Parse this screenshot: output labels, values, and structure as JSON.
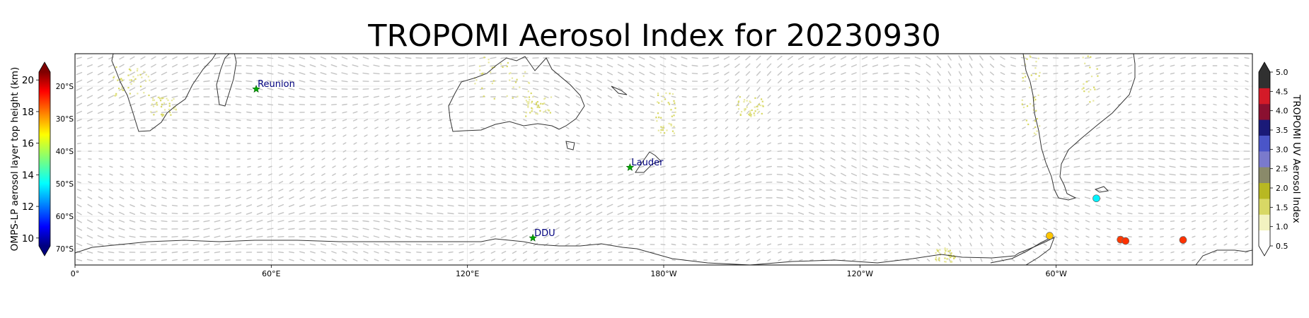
{
  "title": "TROPOMI Aerosol Index for 20230930",
  "map": {
    "projection": "PlateCarree",
    "lon_range": [
      0,
      360
    ],
    "lat_range": [
      -75,
      -10
    ],
    "lon_ticks": [
      {
        "lon": 0,
        "label": "0°"
      },
      {
        "lon": 60,
        "label": "60°E"
      },
      {
        "lon": 120,
        "label": "120°E"
      },
      {
        "lon": 180,
        "label": "180°W"
      },
      {
        "lon": 240,
        "label": "120°W"
      },
      {
        "lon": 300,
        "label": "60°W"
      }
    ],
    "lat_ticks": [
      {
        "lat": -20,
        "label": "20°S"
      },
      {
        "lat": -30,
        "label": "30°S"
      },
      {
        "lat": -40,
        "label": "40°S"
      },
      {
        "lat": -50,
        "label": "50°S"
      },
      {
        "lat": -60,
        "label": "60°S"
      },
      {
        "lat": -70,
        "label": "70°S"
      }
    ],
    "sites": [
      {
        "name": "Reunion",
        "lon": 55.4,
        "lat": -20.9
      },
      {
        "name": "Lauder",
        "lon": 169.7,
        "lat": -45.0
      },
      {
        "name": "DDU",
        "lon": 140.0,
        "lat": -66.7
      }
    ],
    "omps_points": [
      {
        "lon": 312.3,
        "lat": -54.5,
        "height_km": 13.5
      },
      {
        "lon": 298.0,
        "lat": -66.0,
        "height_km": 17.0
      },
      {
        "lon": 319.7,
        "lat": -67.2,
        "height_km": 18.5
      },
      {
        "lon": 321.2,
        "lat": -67.6,
        "height_km": 18.6
      },
      {
        "lon": 338.8,
        "lat": -67.3,
        "height_km": 18.6
      }
    ],
    "colors": {
      "coast": "#333333",
      "wind_arrows": "#c4c4c4",
      "site_star": "#00aa00",
      "site_label": "#00007f"
    }
  },
  "colorbar_left": {
    "label": "OMPS-LP aerosol layer top height (km)",
    "min": 9.5,
    "max": 20.5,
    "ticks": [
      {
        "v": 10,
        "label": "10"
      },
      {
        "v": 12,
        "label": "12"
      },
      {
        "v": 14,
        "label": "14"
      },
      {
        "v": 16,
        "label": "16"
      },
      {
        "v": 18,
        "label": "18"
      },
      {
        "v": 20,
        "label": "20"
      }
    ],
    "colormap": "jet",
    "extend": "both"
  },
  "colorbar_right": {
    "label": "TROPOMI UV Aerosol Index",
    "min": 0.5,
    "max": 5.0,
    "ticks": [
      {
        "v": 0.5,
        "label": "0.5"
      },
      {
        "v": 1.0,
        "label": "1.0"
      },
      {
        "v": 1.5,
        "label": "1.5"
      },
      {
        "v": 2.0,
        "label": "2.0"
      },
      {
        "v": 2.5,
        "label": "2.5"
      },
      {
        "v": 3.0,
        "label": "3.0"
      },
      {
        "v": 3.5,
        "label": "3.5"
      },
      {
        "v": 4.0,
        "label": "4.0"
      },
      {
        "v": 4.5,
        "label": "4.5"
      },
      {
        "v": 5.0,
        "label": "5.0"
      }
    ],
    "colors": [
      "#ffffff",
      "#f2f2c0",
      "#d8d865",
      "#b8b822",
      "#8a8a6a",
      "#7a7acc",
      "#4a55c8",
      "#1a1a78",
      "#8a1030",
      "#d41a28",
      "#303030"
    ],
    "extend": "both"
  }
}
